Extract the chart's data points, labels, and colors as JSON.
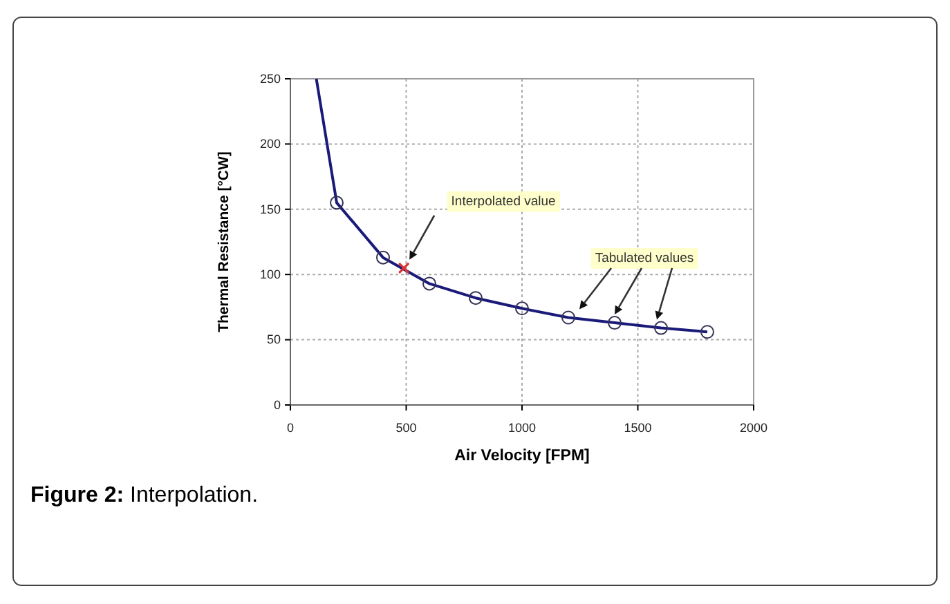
{
  "chart_data": {
    "type": "line",
    "xlabel": "Air Velocity [FPM]",
    "ylabel": "Thermal Resistance [°CW]",
    "xlim": [
      0,
      2000
    ],
    "xticks": [
      0,
      500,
      1000,
      1500,
      2000
    ],
    "ylim": [
      0,
      250
    ],
    "yticks": [
      0,
      50,
      100,
      150,
      200,
      250
    ],
    "grid": true,
    "series": [
      {
        "color": "#1a1a7a",
        "marker": "none",
        "x": [
          112,
          200,
          400,
          600,
          800,
          1000,
          1200,
          1400,
          1600,
          1800
        ],
        "values": [
          250,
          155,
          113,
          93,
          82,
          74,
          67,
          63,
          59,
          56
        ]
      },
      {
        "type": "scatter",
        "color": "#333355",
        "marker": "circle",
        "x": [
          200,
          400,
          600,
          800,
          1000,
          1200,
          1400,
          1600,
          1800
        ],
        "values": [
          155,
          113,
          93,
          82,
          74,
          67,
          63,
          59,
          56
        ]
      },
      {
        "type": "scatter",
        "color": "#dd3333",
        "marker": "cross",
        "x": [
          490
        ],
        "values": [
          105
        ]
      }
    ],
    "annotations": [
      "Interpolated value",
      "Tabulated values",
      "Figure 2: Interpolation."
    ]
  }
}
